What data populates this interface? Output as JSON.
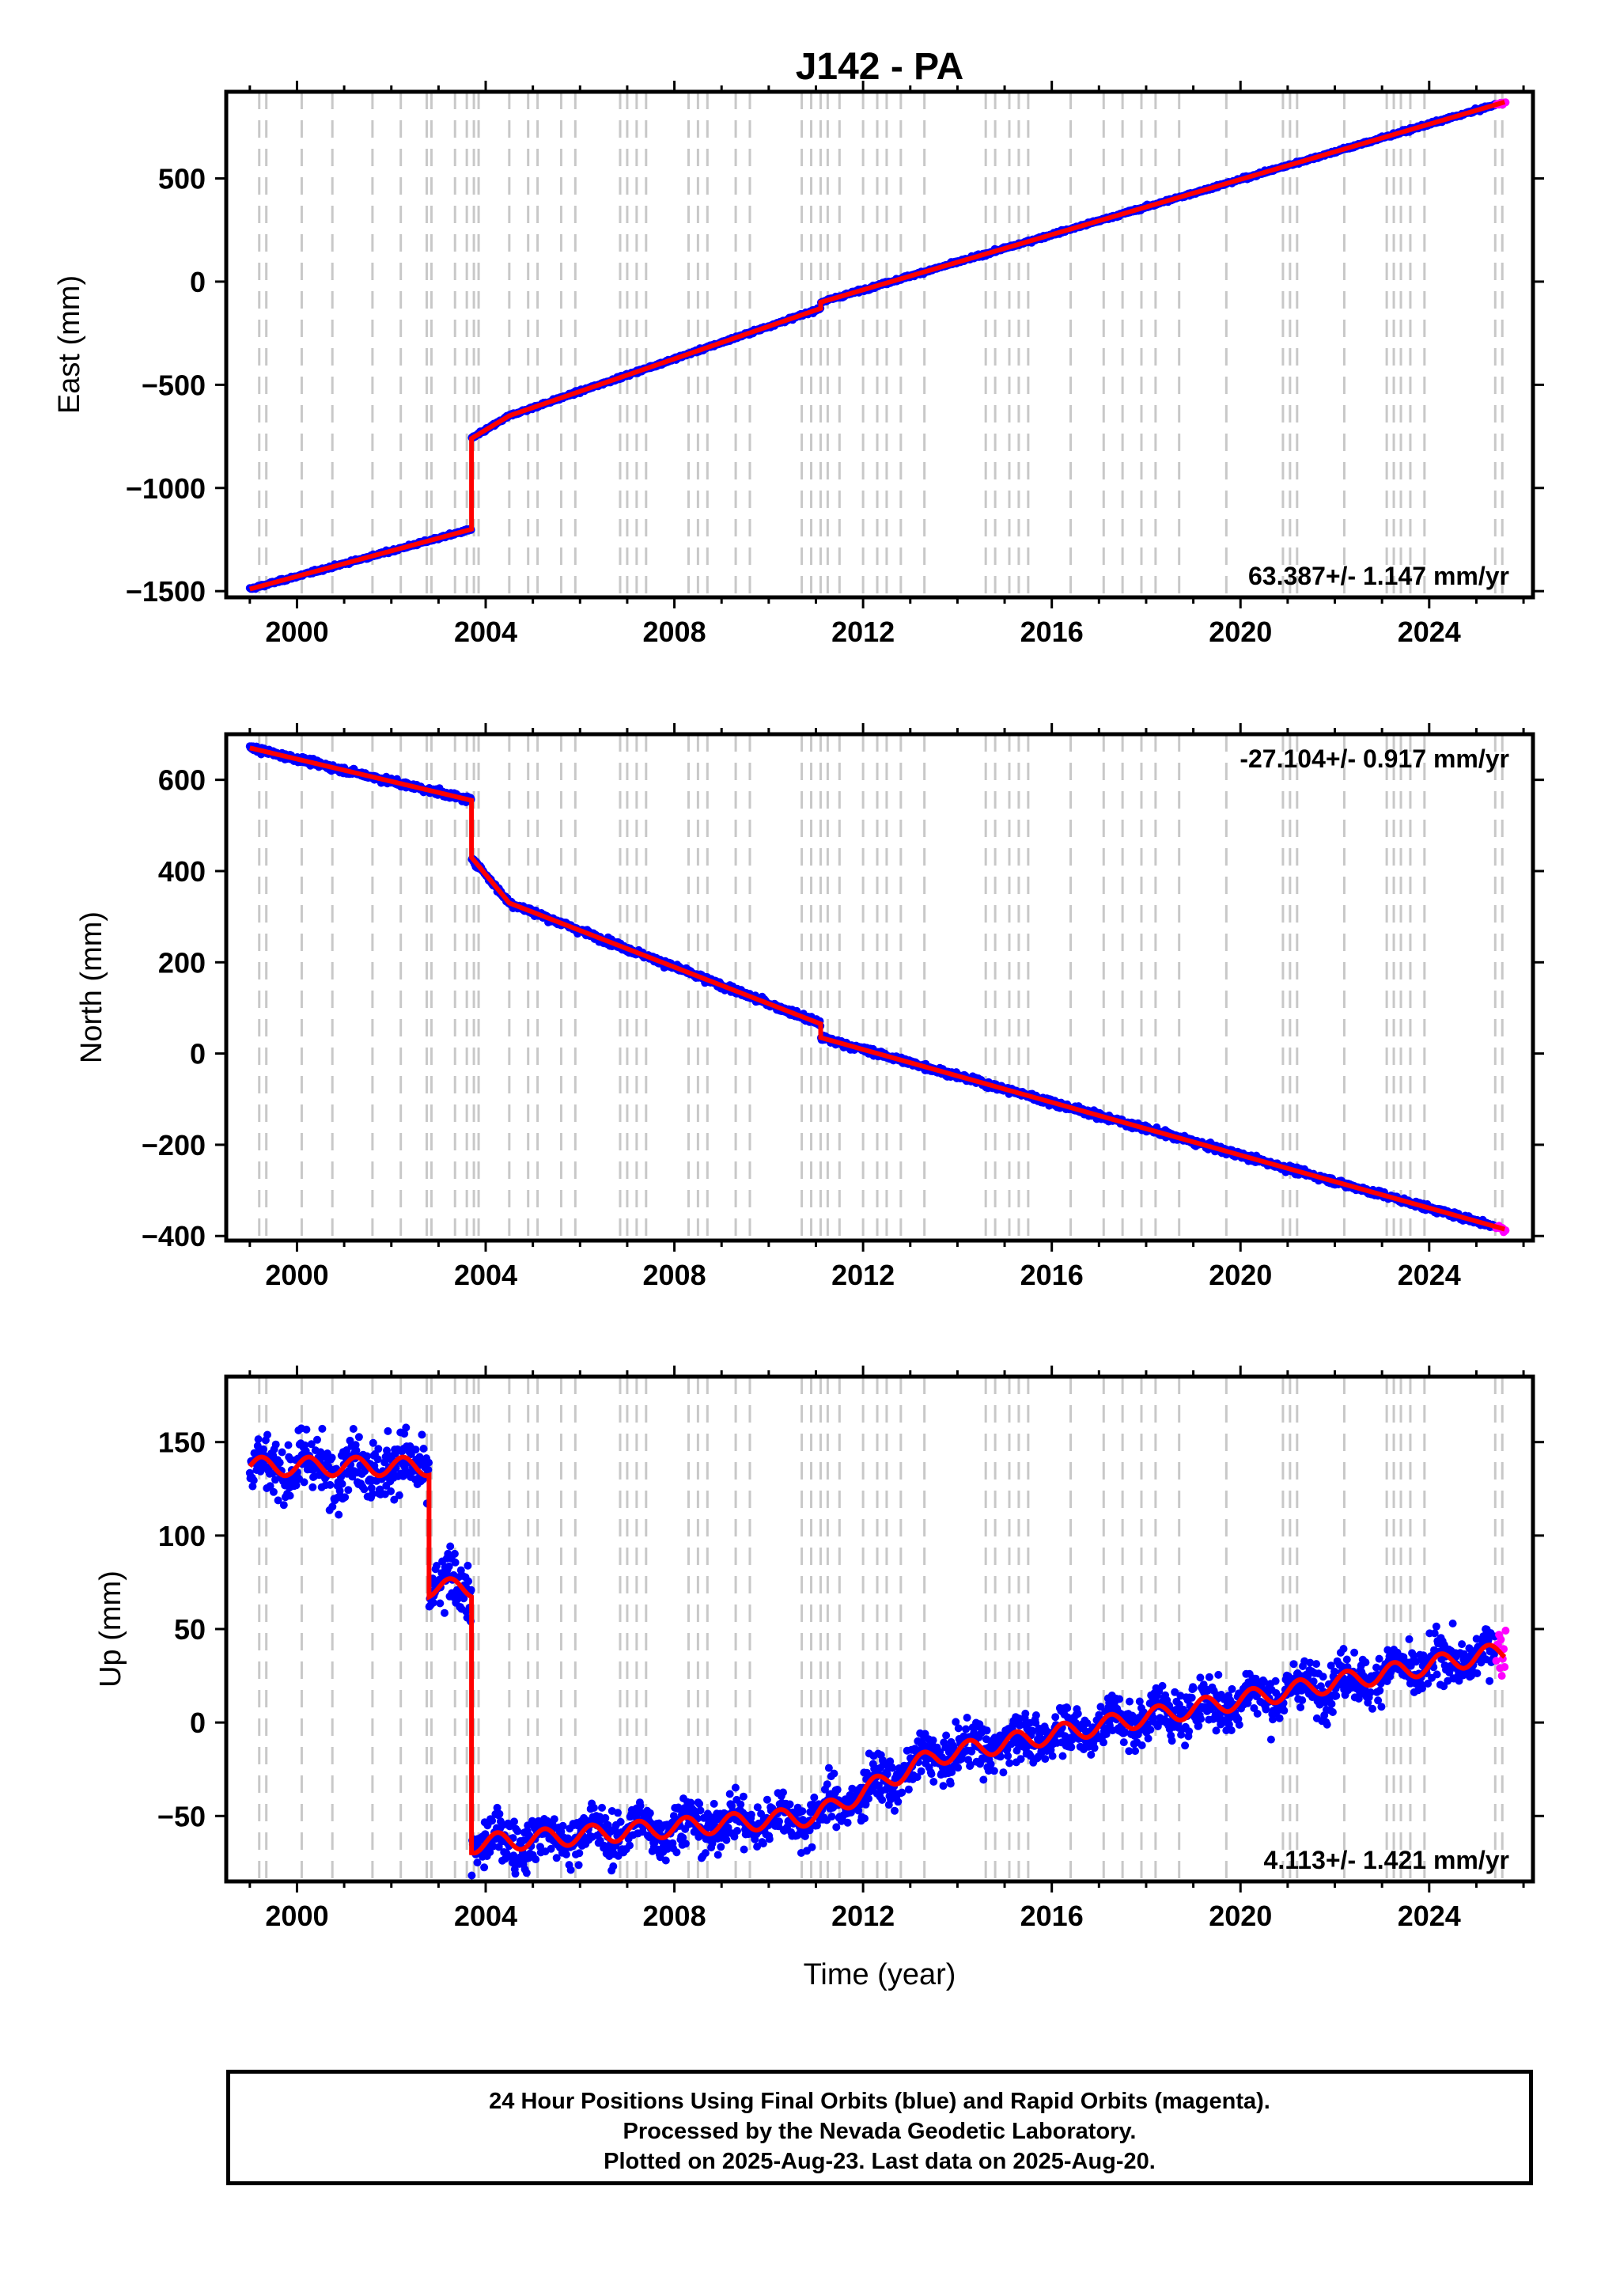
{
  "title": "J142 - PA",
  "xlabel": "Time (year)",
  "footer": {
    "line1": "24 Hour Positions Using Final Orbits (blue) and Rapid Orbits (magenta).",
    "line2": "Processed by the Nevada Geodetic Laboratory.",
    "line3": "Plotted on 2025-Aug-23. Last data on 2025-Aug-20."
  },
  "colors": {
    "final_orbits": "#0000ff",
    "rapid_orbits": "#ff00ff",
    "model_fit": "#ff0000",
    "event_lines": "#c8c8c8"
  },
  "chart_data": [
    {
      "type": "scatter",
      "panel": "east",
      "ylabel": "East (mm)",
      "xlim": [
        1998.5,
        2026.2
      ],
      "ylim": [
        -1530,
        920
      ],
      "xticks": [
        2000,
        2004,
        2008,
        2012,
        2016,
        2020,
        2024
      ],
      "yticks": [
        -1500,
        -1000,
        -500,
        0,
        500
      ],
      "ytick_labels": [
        "−1500",
        "−1000",
        "−500",
        "0",
        "500"
      ],
      "rate_label": "63.387+/- 1.147 mm/yr",
      "rate_label_position": "bottom-right",
      "series": [
        {
          "name": "",
          "kind": "model",
          "x": [
            1999.0,
            2003.7,
            2003.7,
            2004.5,
            2011.1,
            2011.1,
            2025.6
          ],
          "y": [
            -1490,
            -1200,
            -760,
            -650,
            -130,
            -100,
            870
          ]
        }
      ]
    },
    {
      "type": "scatter",
      "panel": "north",
      "ylabel": "North (mm)",
      "xlim": [
        1998.5,
        2026.2
      ],
      "ylim": [
        -410,
        700
      ],
      "xticks": [
        2000,
        2004,
        2008,
        2012,
        2016,
        2020,
        2024
      ],
      "yticks": [
        -400,
        -200,
        0,
        200,
        400,
        600
      ],
      "ytick_labels": [
        "−400",
        "−200",
        "0",
        "200",
        "400",
        "600"
      ],
      "rate_label": "-27.104+/- 0.917 mm/yr",
      "rate_label_position": "top-right",
      "series": [
        {
          "name": "",
          "kind": "model",
          "x": [
            1999.0,
            2003.7,
            2003.7,
            2004.5,
            2011.1,
            2011.1,
            2025.6
          ],
          "y": [
            670,
            555,
            430,
            330,
            65,
            35,
            -385
          ]
        }
      ]
    },
    {
      "type": "scatter",
      "panel": "up",
      "ylabel": "Up (mm)",
      "xlim": [
        1998.5,
        2026.2
      ],
      "ylim": [
        -85,
        185
      ],
      "xticks": [
        2000,
        2004,
        2008,
        2012,
        2016,
        2020,
        2024
      ],
      "yticks": [
        -50,
        0,
        50,
        100,
        150
      ],
      "ytick_labels": [
        "−50",
        "0",
        "50",
        "100",
        "150"
      ],
      "rate_label": "4.113+/- 1.421 mm/yr",
      "rate_label_position": "bottom-right",
      "series": [
        {
          "name": "",
          "kind": "model",
          "x": [
            1999.0,
            2002.8,
            2002.8,
            2003.7,
            2003.7,
            2011.0,
            2013.5,
            2025.6
          ],
          "y": [
            137,
            137,
            72,
            72,
            -65,
            -50,
            -18,
            38
          ]
        }
      ]
    }
  ],
  "event_lines_years": [
    1999.2,
    1999.35,
    2000.1,
    2000.75,
    2001.6,
    2002.2,
    2002.75,
    2002.85,
    2003.35,
    2003.6,
    2003.75,
    2003.85,
    2004.5,
    2004.9,
    2005.1,
    2005.6,
    2005.9,
    2006.85,
    2007.0,
    2007.2,
    2007.4,
    2008.3,
    2008.5,
    2008.7,
    2009.3,
    2009.6,
    2010.7,
    2010.9,
    2011.1,
    2011.25,
    2011.5,
    2012.0,
    2012.3,
    2012.5,
    2012.8,
    2013.3,
    2014.6,
    2014.8,
    2015.1,
    2015.3,
    2015.5,
    2016.4,
    2017.1,
    2017.5,
    2017.9,
    2018.2,
    2018.7,
    2019.7,
    2020.9,
    2021.05,
    2021.2,
    2022.2,
    2023.1,
    2023.25,
    2023.4,
    2023.6,
    2023.9,
    2025.4,
    2025.55
  ]
}
